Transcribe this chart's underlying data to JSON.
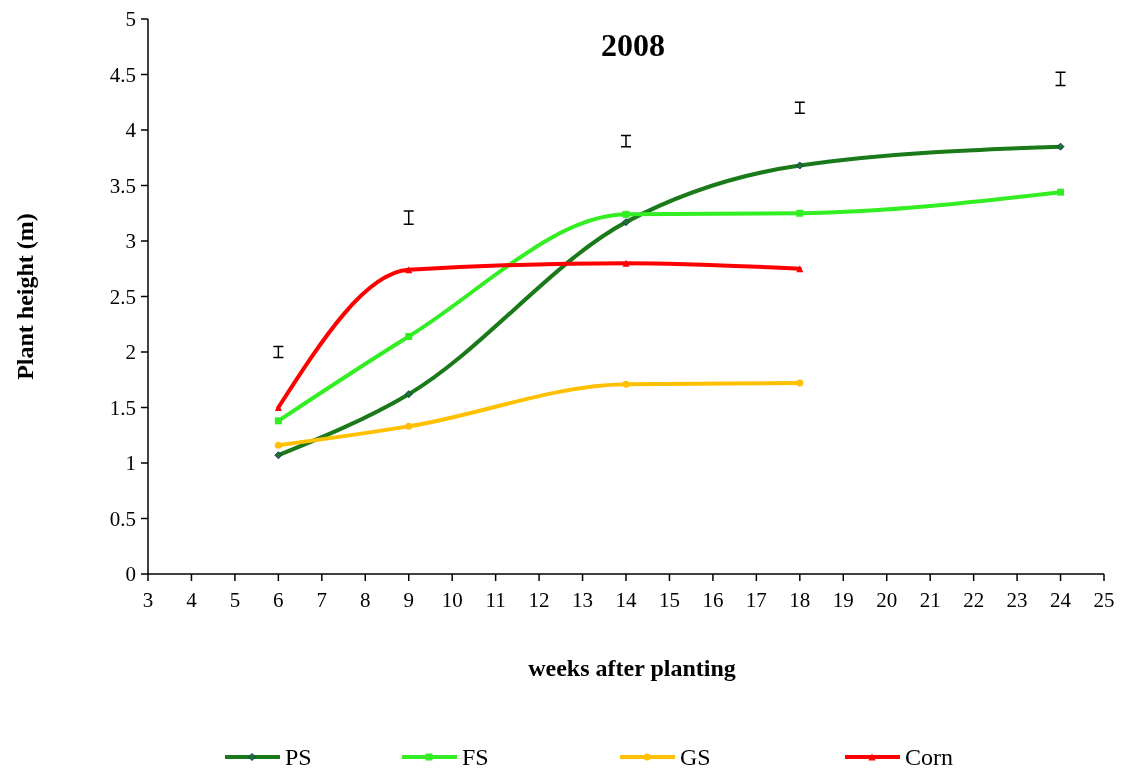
{
  "chart_data": {
    "type": "line",
    "title": "2008",
    "xlabel": "weeks after planting",
    "ylabel": "Plant height (m)",
    "xlim": [
      3,
      25
    ],
    "xticks": [
      3,
      4,
      5,
      6,
      7,
      8,
      9,
      10,
      11,
      12,
      13,
      14,
      15,
      16,
      17,
      18,
      19,
      20,
      21,
      22,
      23,
      24,
      25
    ],
    "ylim": [
      0,
      5
    ],
    "yticks": [
      0,
      0.5,
      1,
      1.5,
      2,
      2.5,
      3,
      3.5,
      4,
      4.5,
      5
    ],
    "grid": false,
    "legend": "bottom",
    "line_style": "solid",
    "series": [
      {
        "name": "PS",
        "color": "#1a7a1a",
        "marker": "diamond",
        "x": [
          6,
          9,
          14,
          18,
          24
        ],
        "values": [
          1.07,
          1.62,
          3.17,
          3.68,
          3.85
        ]
      },
      {
        "name": "FS",
        "color": "#33ee22",
        "marker": "square",
        "x": [
          6,
          9,
          14,
          18,
          24
        ],
        "values": [
          1.38,
          2.14,
          3.24,
          3.25,
          3.44
        ]
      },
      {
        "name": "GS",
        "color": "#ffc000",
        "marker": "circle",
        "x": [
          6,
          9,
          14,
          18
        ],
        "values": [
          1.16,
          1.33,
          1.71,
          1.72
        ]
      },
      {
        "name": "Corn",
        "color": "#ff0000",
        "marker": "triangle",
        "x": [
          6,
          9,
          14,
          18
        ],
        "values": [
          1.5,
          2.74,
          2.8,
          2.75
        ]
      },
      {
        "type": "scatter",
        "color": "#000000",
        "x": [
          6,
          9,
          14,
          18,
          24
        ],
        "values": [
          2.0,
          3.21,
          3.9,
          4.2,
          4.46
        ],
        "errors": [
          0.05,
          0.06,
          0.05,
          0.05,
          0.06
        ]
      }
    ]
  }
}
